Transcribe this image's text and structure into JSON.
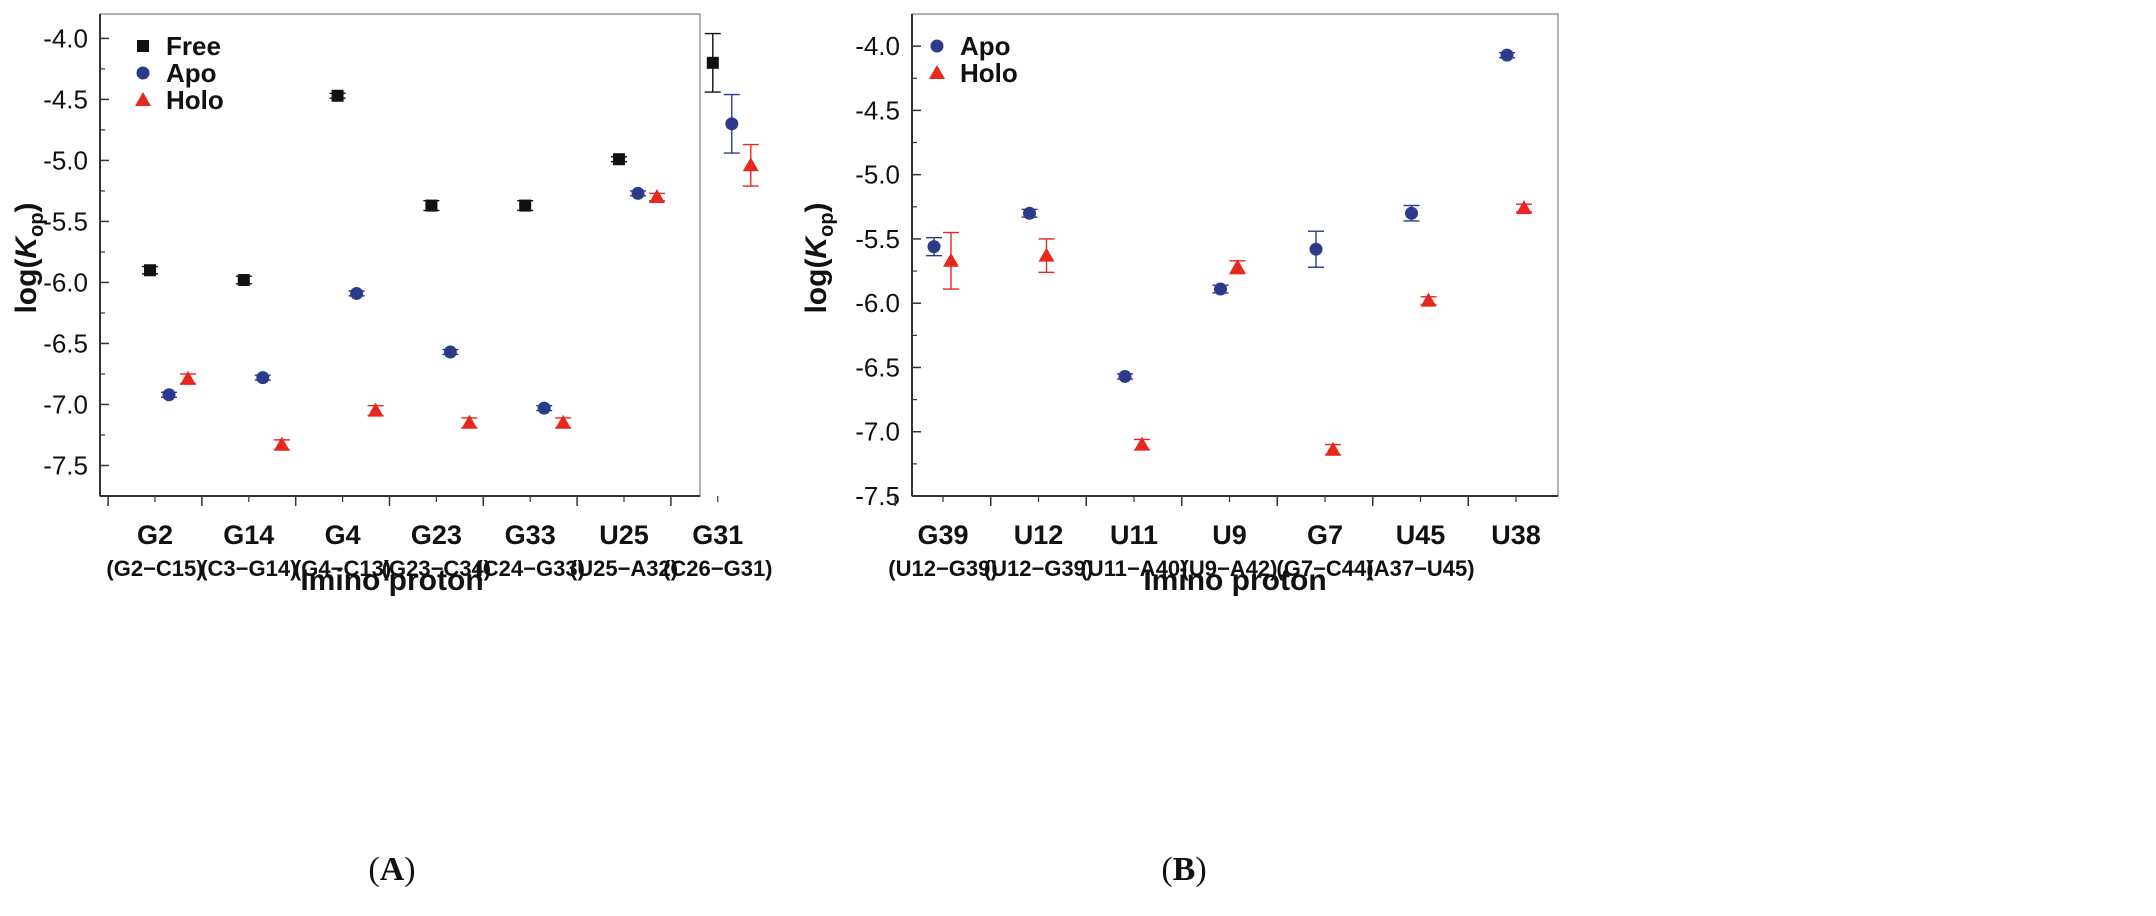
{
  "colors": {
    "free": "#111111",
    "apo": "#2c3a8c",
    "holo": "#e8281e",
    "axis": "#333333"
  },
  "chart_data": [
    {
      "type": "scatter",
      "panel": "A",
      "panel_label": "A",
      "ylabel_main": "log(",
      "ylabel_italic": "K",
      "ylabel_sub": "op",
      "ylabel_close": ")",
      "xlabel": "Imino proton",
      "ylim": [
        -7.75,
        -3.8
      ],
      "yticks": [
        -4.0,
        -4.5,
        -5.0,
        -5.5,
        -6.0,
        -6.5,
        -7.0,
        -7.5
      ],
      "ytick_labels": [
        "-4.0",
        "-4.5",
        "-5.0",
        "-5.5",
        "-6.0",
        "-6.5",
        "-7.0",
        "-7.5"
      ],
      "categories": [
        "G2",
        "G14",
        "G4",
        "G23",
        "G33",
        "U25",
        "G31"
      ],
      "pairs": [
        "(G2−C15)",
        "(C3−G14)",
        "(G4−C13)",
        "(G23−C34)",
        "(C24−G33)",
        "(U25−A32)",
        "(C26−G31)"
      ],
      "legend": [
        "Free",
        "Apo",
        "Holo"
      ],
      "series": [
        {
          "name": "Free",
          "marker": "square",
          "values": [
            -5.9,
            -5.98,
            -4.47,
            -5.37,
            -5.37,
            -4.99,
            -4.2
          ],
          "errors": [
            0.03,
            0.03,
            0.02,
            0.04,
            0.04,
            0.02,
            0.24
          ]
        },
        {
          "name": "Apo",
          "marker": "circle",
          "values": [
            -6.92,
            -6.78,
            -6.09,
            -6.57,
            -7.03,
            -5.27,
            -4.7
          ],
          "errors": [
            0.02,
            0.02,
            0.02,
            0.02,
            0.02,
            0.02,
            0.24
          ]
        },
        {
          "name": "Holo",
          "marker": "triangle",
          "values": [
            -6.79,
            -7.33,
            -7.05,
            -7.15,
            -7.15,
            -5.3,
            -5.04
          ],
          "errors": [
            0.04,
            0.04,
            0.04,
            0.04,
            0.04,
            0.03,
            0.17
          ]
        }
      ]
    },
    {
      "type": "scatter",
      "panel": "B",
      "panel_label": "B",
      "ylabel_main": "log(",
      "ylabel_italic": "K",
      "ylabel_sub": "op",
      "ylabel_close": ")",
      "xlabel": "Imino proton",
      "ylim": [
        -7.5,
        -3.75
      ],
      "yticks": [
        -4.0,
        -4.5,
        -5.0,
        -5.5,
        -6.0,
        -6.5,
        -7.0,
        -7.5
      ],
      "ytick_labels": [
        "-4.0",
        "-4.5",
        "-5.0",
        "-5.5",
        "-6.0",
        "-6.5",
        "-7.0",
        "-7.5"
      ],
      "categories": [
        "G39",
        "U12",
        "U11",
        "U9",
        "G7",
        "U45",
        "U38"
      ],
      "pairs": [
        "(U12−G39)",
        "(U12−G39)",
        "(U11−A40)",
        "(U9−A42)",
        "(G7−C44)",
        "(A37−U45)",
        ""
      ],
      "legend": [
        "Apo",
        "Holo"
      ],
      "series": [
        {
          "name": "Apo",
          "marker": "circle",
          "values": [
            -5.56,
            -5.3,
            -6.57,
            -5.89,
            -5.58,
            -5.3,
            -4.07
          ],
          "errors": [
            0.07,
            0.03,
            0.02,
            0.03,
            0.14,
            0.06,
            0.02
          ]
        },
        {
          "name": "Holo",
          "marker": "triangle",
          "values": [
            -5.67,
            -5.63,
            -7.1,
            -5.72,
            -7.14,
            -5.98,
            -5.26
          ],
          "errors": [
            0.22,
            0.13,
            0.04,
            0.05,
            0.04,
            0.03,
            0.03
          ]
        }
      ]
    }
  ]
}
